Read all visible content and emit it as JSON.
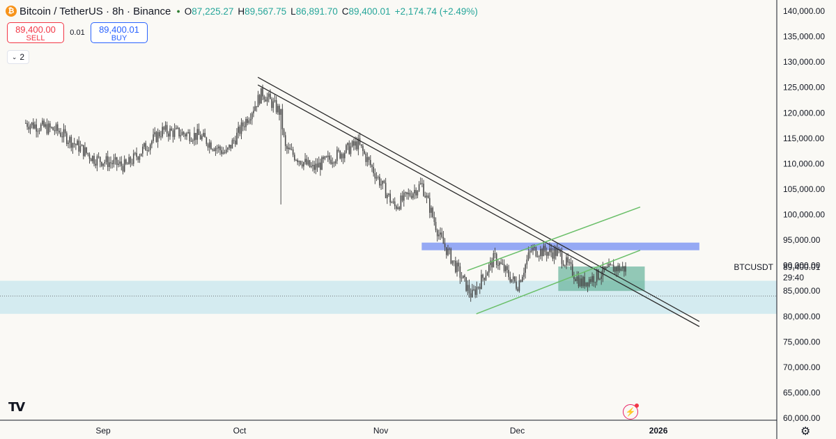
{
  "header": {
    "symbol_title": "Bitcoin / TetherUS · 8h · Binance",
    "coin_glyph": "₿",
    "ohlc": {
      "o_label": "O",
      "o": "87,225.27",
      "h_label": "H",
      "h": "89,567.75",
      "l_label": "L",
      "l": "86,891.70",
      "c_label": "C",
      "c": "89,400.01",
      "change": "+2,174.74 (+2.49%)"
    }
  },
  "trade": {
    "sell_price": "89,400.00",
    "sell_label": "SELL",
    "qty": "0.01",
    "buy_price": "89,400.01",
    "buy_label": "BUY"
  },
  "indicators_collapse": {
    "count": "2"
  },
  "price_badge": {
    "symbol": "BTCUSDT",
    "price": "89,400.01",
    "countdown": "29:40"
  },
  "colors": {
    "up": "#26a69a",
    "down": "#ef5350",
    "candle": "#4a4a4a",
    "support_zone": "#cde9ee",
    "resistance_band": "#8fa4f3",
    "consolidation_box": "#6fb7a0",
    "channel": "#6abf69",
    "trendline": "#2b2b2b",
    "background": "#faf9f5"
  },
  "icons": [
    "bitcoin-coin-icon",
    "market-open-dot-icon",
    "chevron-down-icon",
    "tradingview-logo-icon",
    "lightning-icon",
    "gear-icon"
  ],
  "chart_data": {
    "type": "candlestick",
    "symbol": "BTCUSDT",
    "timeframe": "8h",
    "x_ticks": [
      "Sep",
      "Oct",
      "Nov",
      "Dec",
      "2026"
    ],
    "y_ticks": [
      "140,000.00",
      "135,000.00",
      "130,000.00",
      "125,000.00",
      "120,000.00",
      "115,000.00",
      "110,000.00",
      "105,000.00",
      "100,000.00",
      "95,000.00",
      "90,000.00",
      "85,000.00",
      "80,000.00",
      "75,000.00",
      "70,000.00",
      "65,000.00",
      "60,000.00"
    ],
    "ylim": [
      60000,
      140000
    ],
    "last_price": 89400.01,
    "series": [
      {
        "name": "price_path",
        "x": [
          "2025-08-15",
          "2025-08-22",
          "2025-08-30",
          "2025-09-06",
          "2025-09-14",
          "2025-09-22",
          "2025-09-28",
          "2025-10-02",
          "2025-10-06",
          "2025-10-10",
          "2025-10-11",
          "2025-10-17",
          "2025-10-22",
          "2025-10-27",
          "2025-11-04",
          "2025-11-10",
          "2025-11-14",
          "2025-11-21",
          "2025-11-26",
          "2025-12-01",
          "2025-12-04",
          "2025-12-10",
          "2025-12-15",
          "2025-12-22",
          "2025-12-25"
        ],
        "close": [
          118000,
          116500,
          111000,
          109500,
          116500,
          115500,
          112000,
          118000,
          124000,
          120000,
          113000,
          109000,
          111500,
          114000,
          101500,
          106000,
          95500,
          84000,
          91500,
          86000,
          93000,
          92500,
          86500,
          89500,
          89400
        ]
      }
    ],
    "annotations": {
      "descending_trendlines": [
        {
          "from": {
            "x": "2025-10-05",
            "y": 127000
          },
          "to": {
            "x": "2026-01-10",
            "y": 79000
          }
        },
        {
          "from": {
            "x": "2025-10-05",
            "y": 125500
          },
          "to": {
            "x": "2026-01-10",
            "y": 78000
          }
        }
      ],
      "ascending_channel": [
        {
          "from": {
            "x": "2025-11-20",
            "y": 89000
          },
          "to": {
            "x": "2025-12-28",
            "y": 101500
          }
        },
        {
          "from": {
            "x": "2025-11-22",
            "y": 80500
          },
          "to": {
            "x": "2025-12-28",
            "y": 93000
          }
        }
      ],
      "resistance_band": {
        "from": "2025-11-10",
        "to": "2026-01-10",
        "y": [
          93000,
          94500
        ]
      },
      "support_zone": {
        "y": [
          80500,
          87000
        ]
      },
      "consolidation_box": {
        "from": "2025-12-10",
        "to": "2025-12-29",
        "y": [
          85000,
          89800
        ]
      },
      "dotted_reference_price": 84000
    }
  }
}
